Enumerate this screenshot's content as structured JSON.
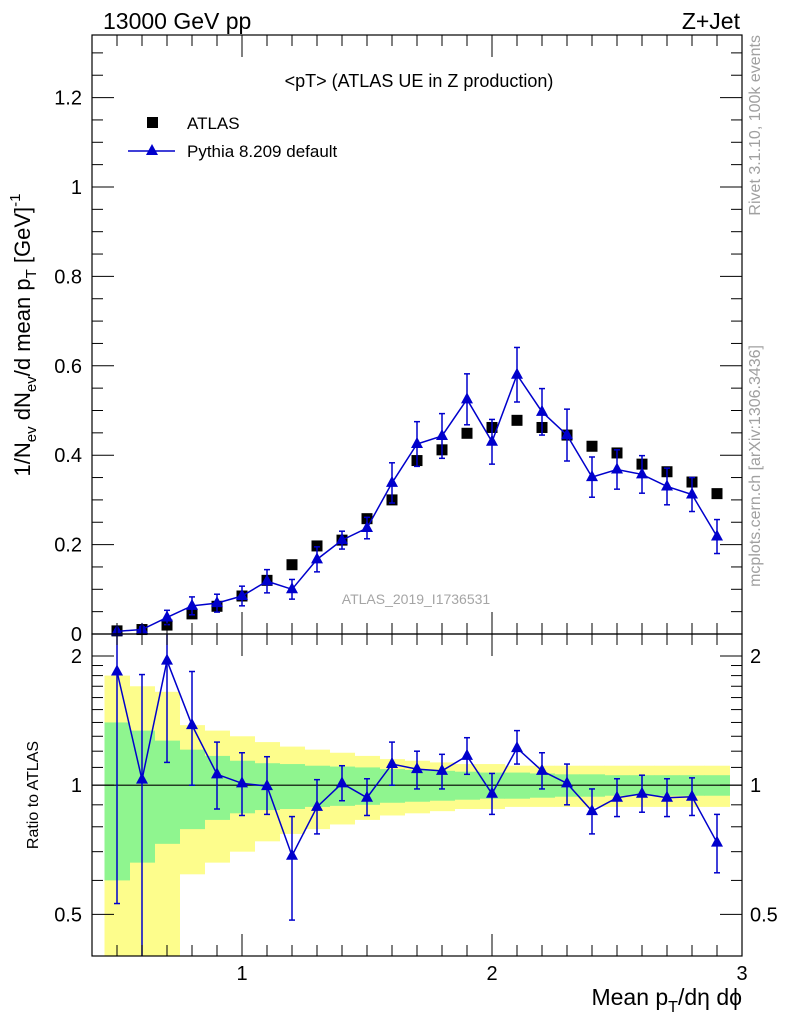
{
  "header": {
    "left": "13000 GeV pp",
    "right": "Z+Jet"
  },
  "side_labels": {
    "rivet": "Rivet 3.1.10,  100k events",
    "mcplots": "mcplots.cern.ch [arXiv:1306.3436]"
  },
  "watermark": "ATLAS_2019_I1736531",
  "colors": {
    "data": "#000000",
    "mc": "#0000cc",
    "band_inner": "#8ff58f",
    "band_outer": "#fdfd8c"
  },
  "chart_data": [
    {
      "type": "scatter",
      "title": "<pT> (ATLAS UE in Z production)",
      "xlabel": "Mean p_T/dη dϕ",
      "ylabel": "1/N_ev dN_ev/d mean p_T [GeV]^-1",
      "xlim": [
        0.4,
        3.0
      ],
      "ylim": [
        0,
        1.34
      ],
      "yticks": [
        0,
        0.2,
        0.4,
        0.6,
        0.8,
        1,
        1.2
      ],
      "ytick_labels": [
        "0",
        "0.2",
        "0.4",
        "0.6",
        "0.8",
        "1",
        "1.2"
      ],
      "legend_position": "top-left",
      "grid": false,
      "x": [
        0.5,
        0.6,
        0.7,
        0.8,
        0.9,
        1.0,
        1.1,
        1.2,
        1.3,
        1.4,
        1.5,
        1.6,
        1.7,
        1.8,
        1.9,
        2.0,
        2.1,
        2.2,
        2.3,
        2.4,
        2.5,
        2.6,
        2.7,
        2.8,
        2.9
      ],
      "series": [
        {
          "name": "ATLAS",
          "marker": "square",
          "values": [
            0.007,
            0.01,
            0.02,
            0.045,
            0.062,
            0.085,
            0.12,
            0.155,
            0.197,
            0.21,
            0.258,
            0.3,
            0.388,
            0.412,
            0.449,
            0.462,
            0.478,
            0.462,
            0.445,
            0.42,
            0.405,
            0.38,
            0.363,
            0.34,
            0.314
          ]
        },
        {
          "name": "Pythia 8.209 default",
          "marker": "triangle",
          "line": true,
          "values": [
            0.006,
            0.01,
            0.037,
            0.063,
            0.069,
            0.085,
            0.118,
            0.1,
            0.167,
            0.21,
            0.237,
            0.338,
            0.425,
            0.443,
            0.525,
            0.43,
            0.58,
            0.497,
            0.445,
            0.351,
            0.368,
            0.357,
            0.33,
            0.312,
            0.218
          ],
          "errors": [
            0.004,
            0.006,
            0.016,
            0.02,
            0.02,
            0.022,
            0.026,
            0.022,
            0.028,
            0.02,
            0.024,
            0.045,
            0.05,
            0.05,
            0.057,
            0.05,
            0.061,
            0.052,
            0.058,
            0.045,
            0.044,
            0.042,
            0.041,
            0.038,
            0.038
          ]
        }
      ]
    },
    {
      "type": "scatter",
      "title": "",
      "xlabel": "Mean p_T/dη dϕ",
      "ylabel": "Ratio to ATLAS",
      "xlim": [
        0.4,
        3.0
      ],
      "ylim": [
        0.4,
        2.25
      ],
      "ylog": true,
      "xticks": [
        1,
        2,
        3
      ],
      "xtick_labels": [
        "1",
        "2",
        "3"
      ],
      "yticks": [
        0.5,
        1,
        2
      ],
      "ytick_labels": [
        "0.5",
        "1",
        "2"
      ],
      "reference_line": 1,
      "x": [
        0.5,
        0.6,
        0.7,
        0.8,
        0.9,
        1.0,
        1.1,
        1.2,
        1.3,
        1.4,
        1.5,
        1.6,
        1.7,
        1.8,
        1.9,
        2.0,
        2.1,
        2.2,
        2.3,
        2.4,
        2.5,
        2.6,
        2.7,
        2.8,
        2.9
      ],
      "band_edges": [
        0.45,
        0.55,
        0.65,
        0.75,
        0.85,
        0.95,
        1.05,
        1.15,
        1.25,
        1.35,
        1.45,
        1.55,
        1.65,
        1.75,
        1.85,
        1.95,
        2.05,
        2.15,
        2.25,
        2.35,
        2.45,
        2.55,
        2.65,
        2.75,
        2.85,
        2.95
      ],
      "band_inner": [
        [
          0.6,
          1.4
        ],
        [
          0.66,
          1.34
        ],
        [
          0.73,
          1.27
        ],
        [
          0.79,
          1.21
        ],
        [
          0.83,
          1.17
        ],
        [
          0.86,
          1.14
        ],
        [
          0.875,
          1.125
        ],
        [
          0.88,
          1.12
        ],
        [
          0.89,
          1.11
        ],
        [
          0.895,
          1.105
        ],
        [
          0.9,
          1.1
        ],
        [
          0.91,
          1.09
        ],
        [
          0.915,
          1.085
        ],
        [
          0.92,
          1.08
        ],
        [
          0.925,
          1.075
        ],
        [
          0.93,
          1.07
        ],
        [
          0.93,
          1.07
        ],
        [
          0.935,
          1.065
        ],
        [
          0.94,
          1.06
        ],
        [
          0.94,
          1.06
        ],
        [
          0.945,
          1.055
        ],
        [
          0.945,
          1.055
        ],
        [
          0.945,
          1.055
        ],
        [
          0.945,
          1.055
        ],
        [
          0.945,
          1.055
        ]
      ],
      "band_outer": [
        [
          0.3,
          1.8
        ],
        [
          0.3,
          1.7
        ],
        [
          0.3,
          1.65
        ],
        [
          0.62,
          1.38
        ],
        [
          0.66,
          1.34
        ],
        [
          0.7,
          1.3
        ],
        [
          0.74,
          1.26
        ],
        [
          0.77,
          1.23
        ],
        [
          0.79,
          1.21
        ],
        [
          0.81,
          1.19
        ],
        [
          0.83,
          1.17
        ],
        [
          0.85,
          1.15
        ],
        [
          0.86,
          1.14
        ],
        [
          0.87,
          1.13
        ],
        [
          0.88,
          1.12
        ],
        [
          0.88,
          1.12
        ],
        [
          0.89,
          1.11
        ],
        [
          0.89,
          1.11
        ],
        [
          0.89,
          1.11
        ],
        [
          0.89,
          1.11
        ],
        [
          0.89,
          1.11
        ],
        [
          0.89,
          1.11
        ],
        [
          0.89,
          1.11
        ],
        [
          0.89,
          1.11
        ],
        [
          0.89,
          1.11
        ]
      ],
      "series": [
        {
          "name": "Pythia 8.209 default",
          "marker": "triangle",
          "line": true,
          "values": [
            1.84,
            1.03,
            1.95,
            1.38,
            1.06,
            1.01,
            0.995,
            0.685,
            0.89,
            1.01,
            0.935,
            1.12,
            1.09,
            1.08,
            1.17,
            0.955,
            1.22,
            1.08,
            1.01,
            0.87,
            0.935,
            0.955,
            0.935,
            0.94,
            0.735
          ],
          "err_low": [
            1.31,
            0.73,
            0.82,
            0.38,
            0.18,
            0.16,
            0.14,
            0.2,
            0.12,
            0.09,
            0.085,
            0.12,
            0.11,
            0.1,
            0.11,
            0.1,
            0.1,
            0.1,
            0.11,
            0.1,
            0.09,
            0.09,
            0.09,
            0.09,
            0.11
          ],
          "err_high": [
            0.5,
            0.78,
            0.55,
            0.46,
            0.2,
            0.18,
            0.17,
            0.16,
            0.14,
            0.1,
            0.1,
            0.14,
            0.11,
            0.1,
            0.12,
            0.11,
            0.12,
            0.11,
            0.11,
            0.11,
            0.1,
            0.1,
            0.1,
            0.1,
            0.12
          ]
        }
      ]
    }
  ]
}
